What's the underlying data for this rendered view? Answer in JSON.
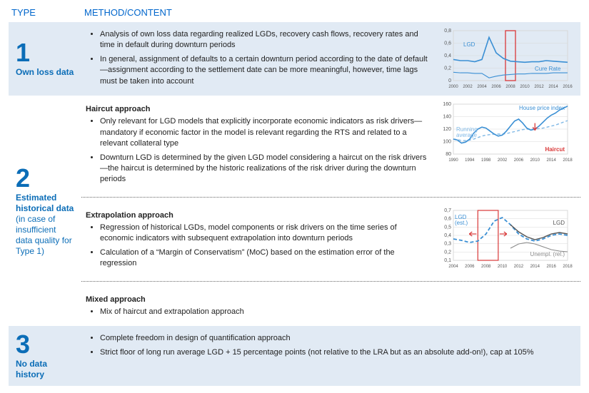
{
  "headers": {
    "type": "TYPE",
    "method": "METHOD/CONTENT"
  },
  "type1": {
    "number": "1",
    "label": "Own loss data",
    "bullets": [
      "Analysis of own loss data regarding realized LGDs, recovery cash flows, recovery rates and time in default during downturn periods",
      "In general, assignment of defaults to a certain downturn period according to the date of default—assignment according to the settlement date can be more meaningful, however, time lags must be taken into account"
    ]
  },
  "type2": {
    "number": "2",
    "label": "Estimated historical data",
    "label_suffix": " (in case of insufficient data quality for Type 1)",
    "haircut": {
      "title": "Haircut approach",
      "bullets": [
        "Only relevant for LGD models that explicitly incorporate economic indicators as risk drivers—mandatory if economic factor in the model is relevant regarding the RTS and related to a relevant collateral type",
        "Downturn LGD is determined by the given LGD model considering a haircut on the risk drivers—the haircut is determined by the historic realizations of the risk driver during the downturn periods"
      ]
    },
    "extrap": {
      "title": "Extrapolation approach",
      "bullets": [
        "Regression of historical LGDs, model components or risk drivers on the time series of economic indicators with subsequent extrapolation into downturn periods",
        "Calculation of a “Margin of Conservatism” (MoC) based on the estimation error of the regression"
      ]
    },
    "mixed": {
      "title": "Mixed approach",
      "bullets": [
        "Mix of haircut and extrapolation approach"
      ]
    }
  },
  "type3": {
    "number": "3",
    "label": "No data history",
    "bullets": [
      "Complete freedom in design of quantification approach",
      "Strict floor of long run average LGD + 15 percentage points (not relative to the LRA but as an absolute add-on!), cap at 105%"
    ]
  },
  "chart1": {
    "type": "line",
    "x_years": [
      "2000",
      "2002",
      "2004",
      "2006",
      "2008",
      "2010",
      "2012",
      "2014",
      "2016"
    ],
    "y_ticks": [
      "0",
      "0,2",
      "0,4",
      "0,6",
      "0,8"
    ],
    "lgd_label": "LGD",
    "cure_label": "Cure Rate",
    "lgd_values": [
      0.38,
      0.36,
      0.36,
      0.34,
      0.38,
      0.78,
      0.5,
      0.4,
      0.35,
      0.34,
      0.33,
      0.34,
      0.34,
      0.36,
      0.35,
      0.34,
      0.33
    ],
    "cure_values": [
      0.15,
      0.14,
      0.14,
      0.13,
      0.13,
      0.05,
      0.08,
      0.1,
      0.11,
      0.12,
      0.12,
      0.13,
      0.13,
      0.13,
      0.14,
      0.14,
      0.14
    ],
    "line_color": "#3a8fd4",
    "highlight_year": 2008,
    "highlight_color": "#d93838",
    "ylim": [
      0,
      0.9
    ],
    "xlim": [
      2000,
      2016
    ],
    "grid_color": "#d8d8d8",
    "font_size": 7
  },
  "chart2": {
    "type": "line",
    "x_years": [
      "1990",
      "1994",
      "1998",
      "2002",
      "2006",
      "2010",
      "2014",
      "2018"
    ],
    "y_ticks": [
      "80",
      "100",
      "120",
      "140",
      "160"
    ],
    "hpi_label": "House price index",
    "run_label": "Running average",
    "haircut_label": "Haircut",
    "hpi_values": [
      100,
      98,
      92,
      94,
      100,
      112,
      120,
      124,
      122,
      116,
      110,
      106,
      108,
      116,
      126,
      136,
      140,
      132,
      122,
      118,
      120,
      126,
      134,
      142,
      148,
      152,
      158,
      162,
      166
    ],
    "run_values": [
      100,
      99,
      97,
      97,
      98,
      100,
      103,
      106,
      108,
      109,
      110,
      110,
      110,
      111,
      113,
      115,
      117,
      119,
      120,
      120,
      120,
      121,
      122,
      124,
      126,
      128,
      131,
      134,
      137
    ],
    "solid_color": "#3a8fd4",
    "dash_color": "#7fb8e6",
    "haircut_color": "#d93838",
    "ylim": [
      70,
      170
    ],
    "xlim": [
      1990,
      2018
    ],
    "grid_color": "#d8d8d8",
    "font_size": 7,
    "haircut_year": 2010
  },
  "chart3": {
    "type": "line",
    "x_years": [
      "2004",
      "2006",
      "2008",
      "2010",
      "2012",
      "2014",
      "2016",
      "2018"
    ],
    "y_ticks": [
      "0,1",
      "0,2",
      "0,3",
      "0,4",
      "0,5",
      "0,6",
      "0,7"
    ],
    "lgd_est_label": "LGD (est.)",
    "lgd_label": "LGD",
    "unempl_label": "Unempl. (rel.)",
    "lgd_est_values": [
      0.35,
      0.33,
      0.3,
      0.32,
      0.42,
      0.6,
      0.65,
      0.55,
      0.42,
      0.35,
      0.32,
      0.35,
      0.4,
      0.42,
      0.4
    ],
    "lgd_actual_values": [
      null,
      null,
      null,
      null,
      null,
      null,
      null,
      0.55,
      0.45,
      0.38,
      0.34,
      0.37,
      0.42,
      0.44,
      0.42
    ],
    "unempl_values": [
      null,
      null,
      null,
      null,
      null,
      null,
      null,
      0.22,
      0.28,
      0.3,
      0.28,
      0.24,
      0.2,
      0.18,
      0.17
    ],
    "est_color": "#3a8fd4",
    "actual_color": "#555",
    "unempl_color": "#8a8a8a",
    "highlight_color": "#d93838",
    "highlight_year": 2008,
    "ylim": [
      0.05,
      0.75
    ],
    "xlim": [
      2004,
      2018
    ],
    "grid_color": "#d8d8d8",
    "font_size": 7
  },
  "palette": {
    "blue": "#0b6db7",
    "row_bg": "#e1eaf4",
    "header_blue": "#0066cc"
  }
}
